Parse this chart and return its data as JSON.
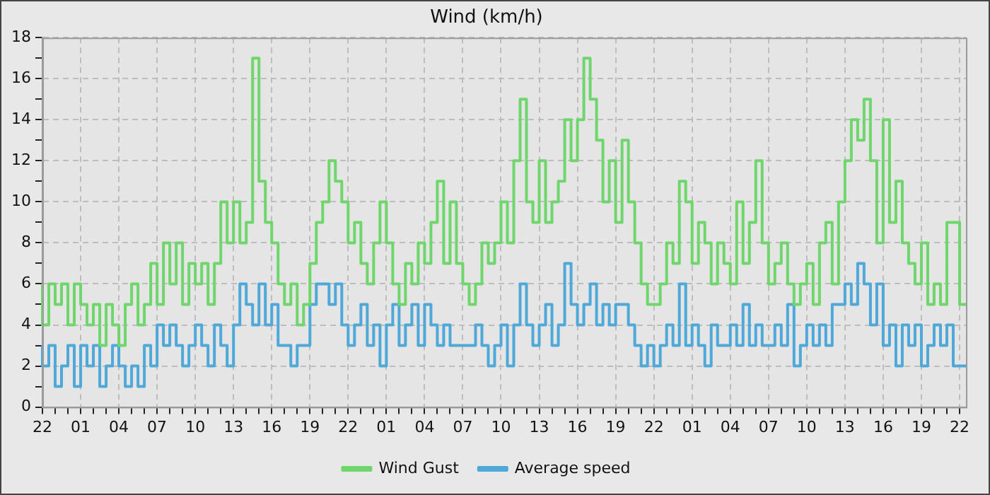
{
  "chart_data": {
    "type": "step",
    "title": "Wind (km/h)",
    "grid": true,
    "legend": "bottom",
    "marker": "none",
    "line_style": "solid",
    "ylim": [
      0,
      18
    ],
    "categories": [
      "22",
      null,
      null,
      null,
      null,
      null,
      "01",
      null,
      null,
      null,
      null,
      null,
      "04",
      null,
      null,
      null,
      null,
      null,
      "07",
      null,
      null,
      null,
      null,
      null,
      "10",
      null,
      null,
      null,
      null,
      null,
      "13",
      null,
      null,
      null,
      null,
      null,
      "16",
      null,
      null,
      null,
      null,
      null,
      "19",
      null,
      null,
      null,
      null,
      null,
      "22",
      null,
      null,
      null,
      null,
      null,
      "01",
      null,
      null,
      null,
      null,
      null,
      "04",
      null,
      null,
      null,
      null,
      null,
      "07",
      null,
      null,
      null,
      null,
      null,
      "10",
      null,
      null,
      null,
      null,
      null,
      "13",
      null,
      null,
      null,
      null,
      null,
      "16",
      null,
      null,
      null,
      null,
      null,
      "19",
      null,
      null,
      null,
      null,
      null,
      "22",
      null,
      null,
      null,
      null,
      null,
      "01",
      null,
      null,
      null,
      null,
      null,
      "04",
      null,
      null,
      null,
      null,
      null,
      "07",
      null,
      null,
      null,
      null,
      null,
      "10",
      null,
      null,
      null,
      null,
      null,
      "13",
      null,
      null,
      null,
      null,
      null,
      "16",
      null,
      null,
      null,
      null,
      null,
      "19",
      null,
      null,
      null,
      null,
      null,
      "22",
      null
    ],
    "yticks": [
      0,
      {
        "value": 1,
        "label": null
      },
      2,
      {
        "value": 3,
        "label": null
      },
      4,
      {
        "value": 5,
        "label": null
      },
      6,
      {
        "value": 7,
        "label": null
      },
      8,
      {
        "value": 9,
        "label": null
      },
      10,
      {
        "value": 11,
        "label": null
      },
      12,
      {
        "value": 13,
        "label": null
      },
      14,
      {
        "value": 15,
        "label": null
      },
      16,
      {
        "value": 17,
        "label": null
      },
      18
    ],
    "series": [
      {
        "name": "Wind Gust",
        "color": "#6fd66c",
        "values": [
          6,
          4,
          6,
          5,
          6,
          4,
          6,
          5,
          4,
          5,
          3,
          5,
          4,
          3,
          5,
          6,
          4,
          5,
          7,
          5,
          8,
          6,
          8,
          5,
          7,
          6,
          7,
          5,
          7,
          10,
          8,
          10,
          8,
          9,
          17,
          11,
          9,
          8,
          6,
          5,
          6,
          4,
          5,
          7,
          9,
          10,
          12,
          11,
          10,
          8,
          9,
          7,
          6,
          8,
          10,
          8,
          6,
          5,
          7,
          6,
          8,
          7,
          9,
          11,
          7,
          10,
          7,
          6,
          5,
          6,
          8,
          7,
          8,
          10,
          8,
          12,
          15,
          10,
          9,
          12,
          9,
          10,
          11,
          14,
          12,
          14,
          17,
          15,
          13,
          10,
          12,
          9,
          13,
          10,
          8,
          6,
          5,
          5,
          6,
          8,
          7,
          11,
          10,
          7,
          9,
          8,
          6,
          8,
          7,
          6,
          10,
          7,
          9,
          12,
          8,
          6,
          7,
          8,
          6,
          5,
          6,
          7,
          5,
          8,
          9,
          6,
          10,
          12,
          14,
          13,
          15,
          12,
          8,
          14,
          9,
          11,
          8,
          7,
          6,
          8,
          5,
          6,
          5,
          9,
          9,
          5
        ]
      },
      {
        "name": "Average speed",
        "color": "#4ea8d8",
        "values": [
          3,
          2,
          3,
          1,
          2,
          3,
          1,
          3,
          2,
          3,
          1,
          2,
          3,
          2,
          1,
          2,
          1,
          3,
          2,
          4,
          3,
          4,
          3,
          2,
          3,
          4,
          3,
          2,
          4,
          3,
          2,
          4,
          6,
          5,
          4,
          6,
          4,
          5,
          3,
          3,
          2,
          3,
          3,
          5,
          6,
          6,
          5,
          6,
          4,
          3,
          4,
          5,
          3,
          4,
          2,
          4,
          5,
          3,
          4,
          5,
          3,
          5,
          4,
          3,
          4,
          3,
          3,
          3,
          3,
          4,
          3,
          2,
          3,
          4,
          2,
          4,
          6,
          4,
          3,
          4,
          5,
          3,
          4,
          7,
          5,
          4,
          5,
          6,
          4,
          5,
          4,
          5,
          5,
          4,
          3,
          2,
          3,
          2,
          3,
          4,
          3,
          6,
          3,
          4,
          3,
          2,
          4,
          3,
          3,
          4,
          3,
          5,
          3,
          4,
          3,
          3,
          4,
          3,
          5,
          2,
          3,
          4,
          3,
          4,
          3,
          5,
          5,
          6,
          5,
          7,
          6,
          4,
          6,
          3,
          4,
          2,
          4,
          3,
          4,
          2,
          3,
          4,
          3,
          4,
          2,
          2
        ]
      }
    ]
  }
}
